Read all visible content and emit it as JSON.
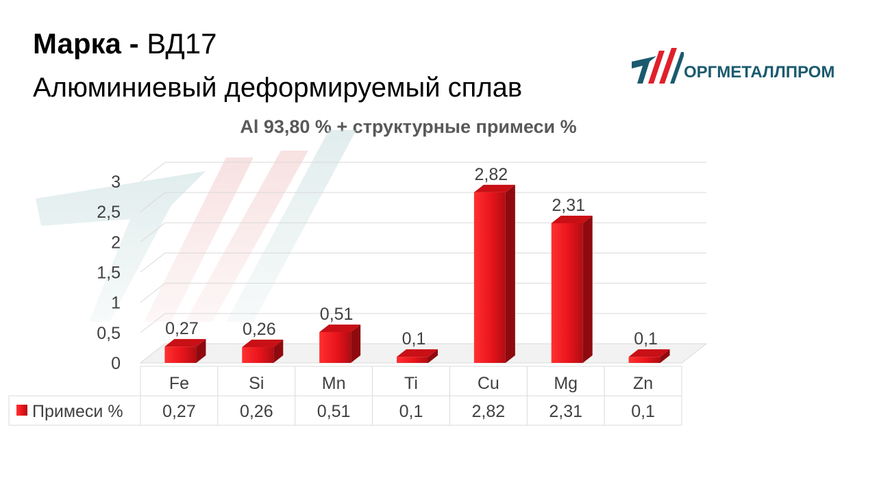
{
  "header": {
    "brand_label": "Марка",
    "separator": " - ",
    "grade": "ВД17",
    "subtitle": "Алюминиевый деформируемый сплав"
  },
  "logo": {
    "text": "ОРГМЕТАЛЛПРОМ",
    "icon": "orgmetallprom-logo-icon",
    "colors": {
      "red": "#e0202a",
      "teal": "#1b5a6e"
    }
  },
  "chart_data": {
    "type": "bar",
    "title": "Al 93,80 % + структурные примеси %",
    "categories": [
      "Fe",
      "Si",
      "Mn",
      "Ti",
      "Cu",
      "Mg",
      "Zn"
    ],
    "series": [
      {
        "name": "Примеси %",
        "values": [
          0.27,
          0.26,
          0.51,
          0.1,
          2.82,
          2.31,
          0.1
        ],
        "value_labels": [
          "0,27",
          "0,26",
          "0,51",
          "0,1",
          "2,82",
          "2,31",
          "0,1"
        ],
        "color": "#e8141c"
      }
    ],
    "ylim": [
      0,
      3
    ],
    "yticks": [
      0,
      0.5,
      1,
      1.5,
      2,
      2.5,
      3
    ],
    "ytick_labels": [
      "0",
      "0,5",
      "1",
      "1,5",
      "2",
      "2,5",
      "3"
    ],
    "grid": true,
    "data_table": true,
    "xlabel": "",
    "ylabel": ""
  }
}
